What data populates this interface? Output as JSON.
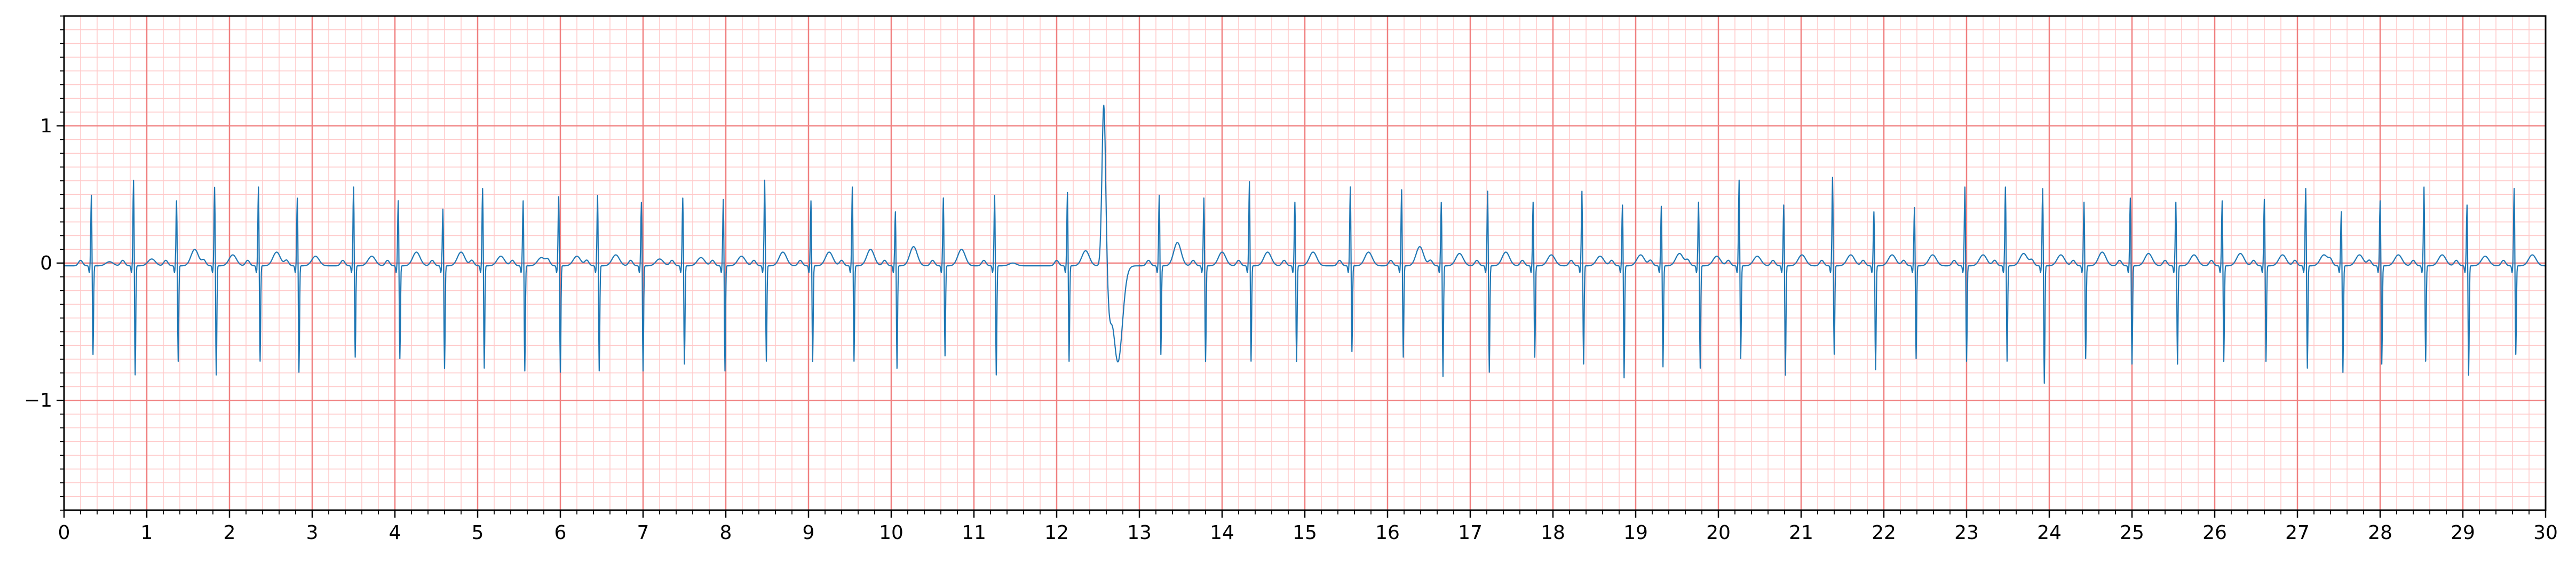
{
  "chart_data": {
    "type": "line",
    "title": "",
    "xlabel": "",
    "ylabel": "",
    "xlim": [
      0,
      30
    ],
    "ylim": [
      -1.8,
      1.8
    ],
    "x_ticks": [
      0,
      1,
      2,
      3,
      4,
      5,
      6,
      7,
      8,
      9,
      10,
      11,
      12,
      13,
      14,
      15,
      16,
      17,
      18,
      19,
      20,
      21,
      22,
      23,
      24,
      25,
      26,
      27,
      28,
      29,
      30
    ],
    "x_tick_labels": [
      "0",
      "1",
      "2",
      "3",
      "4",
      "5",
      "6",
      "7",
      "8",
      "9",
      "10",
      "11",
      "12",
      "13",
      "14",
      "15",
      "16",
      "17",
      "18",
      "19",
      "20",
      "21",
      "22",
      "23",
      "24",
      "25",
      "26",
      "27",
      "28",
      "29",
      "30"
    ],
    "y_ticks": [
      -1,
      0,
      1
    ],
    "y_tick_labels": [
      "−1",
      "0",
      "1"
    ],
    "grid": {
      "major_x_step": 1,
      "major_y_step": 1,
      "minor_x_step": 0.2,
      "minor_y_step": 0.1
    },
    "colors": {
      "major_grid": "#f08080",
      "minor_grid": "#ffc9c9",
      "trace": "#1f77b4",
      "axis": "#000000"
    },
    "beats": [
      {
        "t": 0.33,
        "r": 0.52,
        "s": -0.65,
        "tw": 0.03
      },
      {
        "t": 0.84,
        "r": 0.63,
        "s": -0.8,
        "tw": 0.05
      },
      {
        "t": 1.36,
        "r": 0.48,
        "s": -0.7,
        "tw": 0.12
      },
      {
        "t": 1.82,
        "r": 0.58,
        "s": -0.8,
        "tw": 0.08
      },
      {
        "t": 2.35,
        "r": 0.58,
        "s": -0.7,
        "tw": 0.1
      },
      {
        "t": 2.82,
        "r": 0.5,
        "s": -0.78,
        "tw": 0.07
      },
      {
        "t": 3.5,
        "r": 0.58,
        "s": -0.67,
        "tw": 0.07
      },
      {
        "t": 4.04,
        "r": 0.48,
        "s": -0.68,
        "tw": 0.1
      },
      {
        "t": 4.58,
        "r": 0.42,
        "s": -0.75,
        "tw": 0.1
      },
      {
        "t": 5.06,
        "r": 0.57,
        "s": -0.75,
        "tw": 0.07
      },
      {
        "t": 5.55,
        "r": 0.48,
        "s": -0.77,
        "tw": 0.06
      },
      {
        "t": 5.98,
        "r": 0.51,
        "s": -0.78,
        "tw": 0.07
      },
      {
        "t": 6.45,
        "r": 0.52,
        "s": -0.77,
        "tw": 0.08
      },
      {
        "t": 6.98,
        "r": 0.47,
        "s": -0.77,
        "tw": 0.05
      },
      {
        "t": 7.48,
        "r": 0.5,
        "s": -0.72,
        "tw": 0.06
      },
      {
        "t": 7.97,
        "r": 0.49,
        "s": -0.77,
        "tw": 0.07
      },
      {
        "t": 8.47,
        "r": 0.63,
        "s": -0.7,
        "tw": 0.1
      },
      {
        "t": 9.03,
        "r": 0.48,
        "s": -0.7,
        "tw": 0.1
      },
      {
        "t": 9.53,
        "r": 0.58,
        "s": -0.7,
        "tw": 0.12
      },
      {
        "t": 10.05,
        "r": 0.4,
        "s": -0.75,
        "tw": 0.14
      },
      {
        "t": 10.63,
        "r": 0.5,
        "s": -0.66,
        "tw": 0.12
      },
      {
        "t": 11.25,
        "r": 0.52,
        "s": -0.8,
        "tw": 0.02
      },
      {
        "t": 12.13,
        "r": 0.54,
        "s": -0.7,
        "tw": 0.11
      },
      {
        "t": 12.57,
        "r": 1.18,
        "s": -0.25,
        "tw": -0.7,
        "pvc": true
      },
      {
        "t": 13.24,
        "r": 0.52,
        "s": -0.65,
        "tw": 0.17
      },
      {
        "t": 13.78,
        "r": 0.5,
        "s": -0.7,
        "tw": 0.1
      },
      {
        "t": 14.33,
        "r": 0.62,
        "s": -0.7,
        "tw": 0.1
      },
      {
        "t": 14.88,
        "r": 0.47,
        "s": -0.7,
        "tw": 0.1
      },
      {
        "t": 15.55,
        "r": 0.58,
        "s": -0.63,
        "tw": 0.1
      },
      {
        "t": 16.17,
        "r": 0.56,
        "s": -0.67,
        "tw": 0.14
      },
      {
        "t": 16.65,
        "r": 0.47,
        "s": -0.81,
        "tw": 0.09
      },
      {
        "t": 17.21,
        "r": 0.55,
        "s": -0.78,
        "tw": 0.1
      },
      {
        "t": 17.76,
        "r": 0.47,
        "s": -0.67,
        "tw": 0.08
      },
      {
        "t": 18.35,
        "r": 0.55,
        "s": -0.72,
        "tw": 0.07
      },
      {
        "t": 18.84,
        "r": 0.45,
        "s": -0.82,
        "tw": 0.08
      },
      {
        "t": 19.31,
        "r": 0.44,
        "s": -0.74,
        "tw": 0.09
      },
      {
        "t": 19.76,
        "r": 0.47,
        "s": -0.75,
        "tw": 0.07
      },
      {
        "t": 20.25,
        "r": 0.63,
        "s": -0.68,
        "tw": 0.07
      },
      {
        "t": 20.79,
        "r": 0.45,
        "s": -0.8,
        "tw": 0.08
      },
      {
        "t": 21.38,
        "r": 0.65,
        "s": -0.65,
        "tw": 0.08
      },
      {
        "t": 21.88,
        "r": 0.4,
        "s": -0.76,
        "tw": 0.08
      },
      {
        "t": 22.37,
        "r": 0.43,
        "s": -0.68,
        "tw": 0.08
      },
      {
        "t": 22.98,
        "r": 0.58,
        "s": -0.7,
        "tw": 0.08
      },
      {
        "t": 23.47,
        "r": 0.58,
        "s": -0.7,
        "tw": 0.09
      },
      {
        "t": 23.92,
        "r": 0.57,
        "s": -0.86,
        "tw": 0.08
      },
      {
        "t": 24.42,
        "r": 0.47,
        "s": -0.68,
        "tw": 0.1
      },
      {
        "t": 24.98,
        "r": 0.5,
        "s": -0.72,
        "tw": 0.09
      },
      {
        "t": 25.53,
        "r": 0.47,
        "s": -0.72,
        "tw": 0.08
      },
      {
        "t": 26.09,
        "r": 0.48,
        "s": -0.7,
        "tw": 0.09
      },
      {
        "t": 26.6,
        "r": 0.49,
        "s": -0.7,
        "tw": 0.08
      },
      {
        "t": 27.1,
        "r": 0.57,
        "s": -0.75,
        "tw": 0.08
      },
      {
        "t": 27.53,
        "r": 0.4,
        "s": -0.78,
        "tw": 0.08
      },
      {
        "t": 28.0,
        "r": 0.48,
        "s": -0.72,
        "tw": 0.08
      },
      {
        "t": 28.53,
        "r": 0.58,
        "s": -0.7,
        "tw": 0.08
      },
      {
        "t": 29.05,
        "r": 0.45,
        "s": -0.8,
        "tw": 0.07
      },
      {
        "t": 29.62,
        "r": 0.57,
        "s": -0.65,
        "tw": 0.08
      }
    ]
  }
}
